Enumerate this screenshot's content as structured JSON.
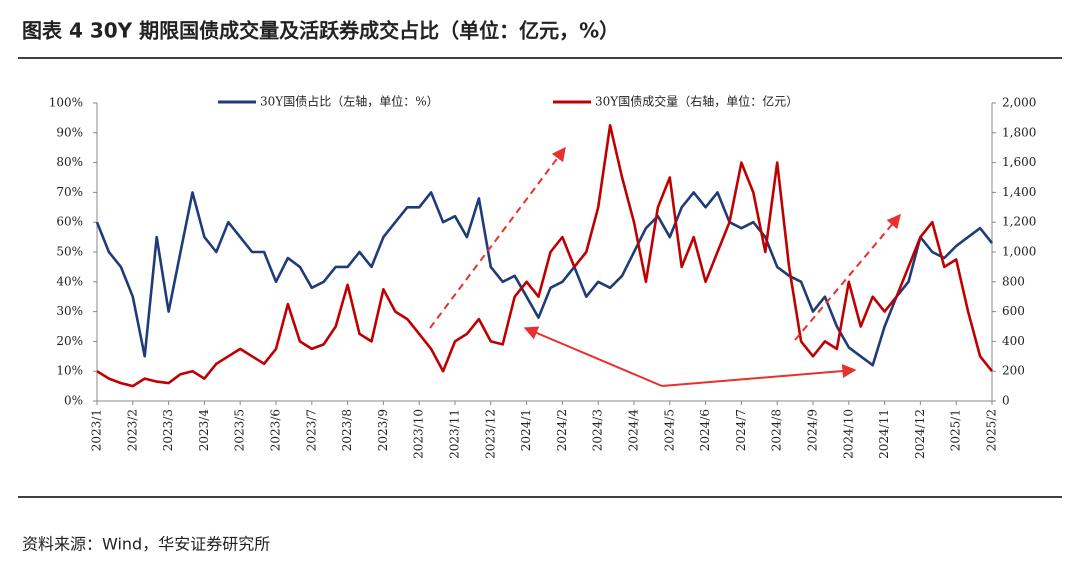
{
  "chart_data": {
    "type": "line",
    "title": "图表 4 30Y 期限国债成交量及活跃券成交占比（单位：亿元，%）",
    "source": "资料来源：Wind，华安证券研究所",
    "categories": [
      "2023/1",
      null,
      null,
      "2023/2",
      null,
      null,
      "2023/3",
      null,
      null,
      "2023/4",
      null,
      null,
      "2023/5",
      null,
      null,
      "2023/6",
      null,
      null,
      "2023/7",
      null,
      null,
      "2023/8",
      null,
      null,
      "2023/9",
      null,
      null,
      "2023/10",
      null,
      null,
      "2023/11",
      null,
      null,
      "2023/12",
      null,
      null,
      "2024/1",
      null,
      null,
      "2024/2",
      null,
      null,
      "2024/3",
      null,
      null,
      "2024/4",
      null,
      null,
      "2024/5",
      null,
      null,
      "2024/6",
      null,
      null,
      "2024/7",
      null,
      null,
      "2024/8",
      null,
      null,
      "2024/9",
      null,
      null,
      "2024/10",
      null,
      null,
      "2024/11",
      null,
      null,
      "2024/12",
      null,
      null,
      "2025/1",
      null,
      null,
      "2025/2"
    ],
    "series": [
      {
        "name": "30Y国债占比（左轴，单位：%）",
        "color": "#1f3b7a",
        "values": [
          60,
          50,
          45,
          35,
          15,
          55,
          30,
          50,
          70,
          55,
          50,
          60,
          55,
          50,
          50,
          40,
          48,
          45,
          38,
          40,
          45,
          45,
          50,
          45,
          55,
          60,
          65,
          65,
          70,
          60,
          62,
          55,
          68,
          45,
          40,
          42,
          35,
          28,
          38,
          40,
          45,
          35,
          40,
          38,
          42,
          50,
          58,
          62,
          55,
          65,
          70,
          65,
          70,
          60,
          58,
          60,
          55,
          45,
          42,
          40,
          30,
          35,
          25,
          18,
          15,
          12,
          25,
          35,
          40,
          55,
          50,
          48,
          52,
          55,
          58,
          53
        ]
      },
      {
        "name": "30Y国债成交量（右轴，单位：亿元）",
        "color": "#c00000",
        "axis": "y2",
        "values": [
          200,
          150,
          120,
          100,
          150,
          130,
          120,
          180,
          200,
          150,
          250,
          300,
          350,
          300,
          250,
          350,
          650,
          400,
          350,
          380,
          500,
          780,
          450,
          400,
          750,
          600,
          550,
          450,
          350,
          200,
          400,
          450,
          550,
          400,
          380,
          700,
          800,
          700,
          1000,
          1100,
          900,
          1000,
          1300,
          1850,
          1500,
          1200,
          800,
          1300,
          1500,
          900,
          1100,
          800,
          1000,
          1200,
          1600,
          1400,
          1000,
          1600,
          900,
          400,
          300,
          400,
          350,
          800,
          500,
          700,
          600,
          700,
          900,
          1100,
          1200,
          900,
          950,
          600,
          300,
          200
        ]
      }
    ],
    "ylim": [
      0,
      100
    ],
    "yticks": [
      {
        "value": 0,
        "label": "0%"
      },
      {
        "value": 10,
        "label": "10%"
      },
      {
        "value": 20,
        "label": "20%"
      },
      {
        "value": 30,
        "label": "30%"
      },
      {
        "value": 40,
        "label": "40%"
      },
      {
        "value": 50,
        "label": "50%"
      },
      {
        "value": 60,
        "label": "60%"
      },
      {
        "value": 70,
        "label": "70%"
      },
      {
        "value": 80,
        "label": "80%"
      },
      {
        "value": 90,
        "label": "90%"
      },
      {
        "value": 100,
        "label": "100%"
      }
    ],
    "y2lim": [
      0,
      2000
    ],
    "y2ticks": [
      0,
      200,
      400,
      600,
      800,
      {
        "value": 1000,
        "label": "1,000"
      },
      {
        "value": 1200,
        "label": "1,200"
      },
      {
        "value": 1400,
        "label": "1,400"
      },
      {
        "value": 1600,
        "label": "1,600"
      },
      {
        "value": 1800,
        "label": "1,800"
      },
      {
        "value": 2000,
        "label": "2,000"
      }
    ],
    "grid": false
  }
}
